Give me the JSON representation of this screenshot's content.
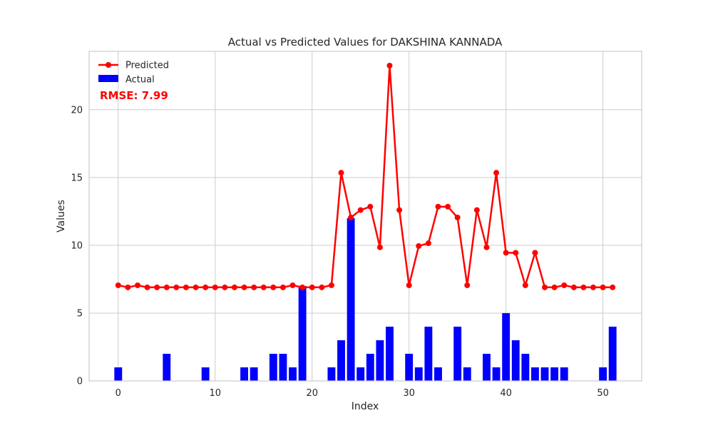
{
  "chart_data": {
    "type": "bar",
    "title": "Actual vs Predicted Values for DAKSHINA KANNADA",
    "xlabel": "Index",
    "ylabel": "Values",
    "xlim": [
      -3,
      54
    ],
    "ylim": [
      0,
      24.3
    ],
    "xticks": [
      0,
      10,
      20,
      30,
      40,
      50
    ],
    "yticks": [
      0,
      5,
      10,
      15,
      20
    ],
    "grid": true,
    "legend_position": "top-left",
    "annotation": "RMSE: 7.99",
    "series": [
      {
        "name": "Predicted",
        "kind": "line",
        "color": "#ff0000",
        "values": [
          7.05,
          6.9,
          7.05,
          6.9,
          6.9,
          6.9,
          6.9,
          6.9,
          6.9,
          6.9,
          6.9,
          6.9,
          6.9,
          6.9,
          6.9,
          6.9,
          6.9,
          6.9,
          7.05,
          6.9,
          6.9,
          6.9,
          7.05,
          15.35,
          12.05,
          12.6,
          12.85,
          9.85,
          23.25,
          12.6,
          7.05,
          9.95,
          10.15,
          12.85,
          12.85,
          12.05,
          7.05,
          12.6,
          9.85,
          15.35,
          9.45,
          9.45,
          7.05,
          9.45,
          6.9,
          6.9,
          7.05,
          6.9,
          6.9,
          6.9,
          6.9,
          6.9
        ]
      },
      {
        "name": "Actual",
        "kind": "bar",
        "color": "#0000ff",
        "values": [
          1,
          0,
          0,
          0,
          0,
          2,
          0,
          0,
          0,
          1,
          0,
          0,
          0,
          1,
          1,
          0,
          2,
          2,
          1,
          7,
          0,
          0,
          1,
          3,
          12,
          1,
          2,
          3,
          4,
          0,
          2,
          1,
          4,
          1,
          0,
          4,
          1,
          0,
          2,
          1,
          5,
          3,
          2,
          1,
          1,
          1,
          1,
          0,
          0,
          0,
          1,
          4
        ]
      }
    ]
  }
}
